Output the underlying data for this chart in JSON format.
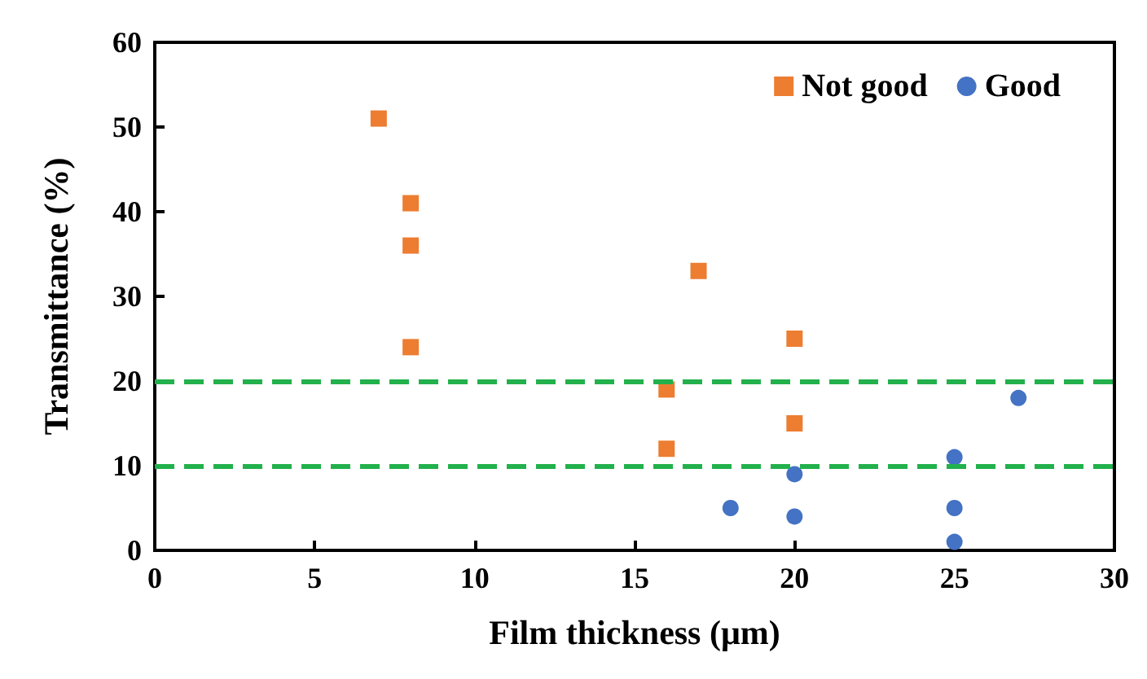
{
  "chart_data": {
    "type": "scatter",
    "xlabel": "Film thickness (μm)",
    "ylabel": "Transmittance (%)",
    "xlim": [
      0,
      30
    ],
    "xticks": [
      0,
      5,
      10,
      15,
      20,
      25,
      30
    ],
    "ylim": [
      0,
      60
    ],
    "yticks": [
      0,
      10,
      20,
      30,
      40,
      50,
      60
    ],
    "grid": false,
    "legend": "top right",
    "series": [
      {
        "name": "Not good",
        "color": "#ed7d31",
        "marker": "square",
        "x": [
          7,
          8,
          8,
          8,
          16,
          16,
          17,
          20,
          20
        ],
        "values": [
          51,
          41,
          36,
          24,
          19,
          12,
          33,
          25,
          15
        ]
      },
      {
        "name": "Good",
        "color": "#4472c4",
        "marker": "circle",
        "x": [
          18,
          20,
          20,
          25,
          25,
          25,
          27
        ],
        "values": [
          5,
          9,
          4,
          11,
          5,
          1,
          18
        ]
      }
    ],
    "ref_lines": [
      {
        "axis": "y",
        "value": 20,
        "color": "#22b14c",
        "line_style": "dashed"
      },
      {
        "axis": "y",
        "value": 10,
        "color": "#22b14c",
        "line_style": "dashed"
      }
    ]
  }
}
